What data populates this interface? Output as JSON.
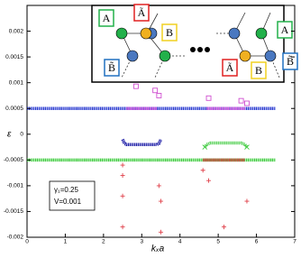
{
  "chart_data": {
    "type": "scatter",
    "x_label": "kₓa",
    "y_label": "ε",
    "xlim": [
      0,
      7
    ],
    "xticks": [
      0,
      1,
      2,
      3,
      4,
      5,
      6,
      7
    ],
    "ylim": [
      -0.002,
      0.0025
    ],
    "yticks": [
      -0.002,
      -0.0015,
      -0.001,
      -0.0005,
      0,
      0.0005,
      0.001,
      0.0015,
      0.002
    ],
    "annotations": [
      "γ₁=0.25",
      "V=0.001"
    ],
    "inset_labels": [
      "A",
      "Ã",
      "B",
      "B̃",
      "Ã",
      "B",
      "A",
      "B̃"
    ],
    "series": [
      {
        "mode": "line",
        "color": "#2a3ad0",
        "x": [
          0,
          6.5
        ],
        "values": [
          0.0005,
          0.0005
        ]
      },
      {
        "mode": "line",
        "color": "#3ecb3e",
        "x": [
          0,
          6.5
        ],
        "values": [
          -0.0005,
          -0.0005
        ]
      },
      {
        "mode": "line",
        "color": "#e064e0",
        "x": [
          2.6,
          3.4,
          4.0,
          4.7,
          5.7
        ],
        "values": [
          0.0005,
          0.0005,
          null,
          0.0005,
          0.0005
        ]
      },
      {
        "mode": "line",
        "color": "#e0404a",
        "x": [
          4.6,
          5.7
        ],
        "values": [
          -0.0005,
          -0.0005
        ]
      },
      {
        "mode": "line",
        "color": "#2020a8",
        "x": [
          2.5,
          2.55,
          2.6,
          3.4,
          3.45,
          3.5
        ],
        "values": [
          -0.0001,
          -0.00018,
          -0.0002,
          -0.0002,
          -0.00018,
          -0.0001
        ]
      },
      {
        "mode": "line",
        "color": "#5ad25a",
        "x": [
          4.65,
          4.7,
          4.8,
          5.6,
          5.7,
          5.75
        ],
        "values": [
          -0.00025,
          -0.0002,
          -0.00017,
          -0.00017,
          -0.0002,
          -0.00025
        ]
      },
      {
        "mode": "points",
        "marker": "square",
        "color": "#d050d0",
        "x": [
          2.85,
          3.35,
          3.45,
          4.75,
          5.6,
          5.75
        ],
        "values": [
          0.00093,
          0.00085,
          0.00075,
          0.0007,
          0.00065,
          0.0006
        ]
      },
      {
        "mode": "points",
        "marker": "plus",
        "color": "#e0404a",
        "x": [
          2.5,
          2.5,
          2.5,
          2.5,
          3.45,
          3.5,
          3.5,
          4.6,
          4.75,
          5.15,
          5.75
        ],
        "values": [
          -0.0006,
          -0.0008,
          -0.0012,
          -0.0018,
          -0.001,
          -0.0013,
          -0.0019,
          -0.0007,
          -0.0009,
          -0.0018,
          -0.0013
        ]
      },
      {
        "mode": "points",
        "marker": "x",
        "color": "#3ecb3e",
        "x": [
          4.65,
          5.75
        ],
        "values": [
          -0.00025,
          -0.00025
        ]
      }
    ]
  }
}
